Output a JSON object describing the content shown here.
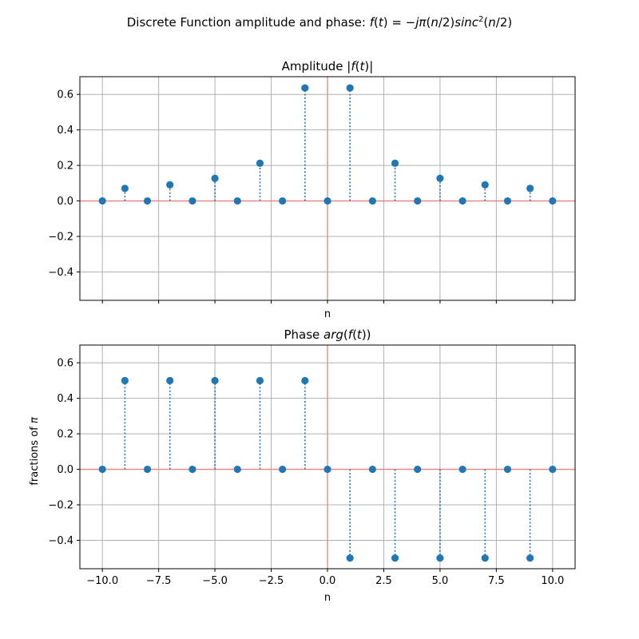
{
  "figure": {
    "suptitle_prefix": "Discrete Function amplitude and phase: ",
    "suptitle_math_a": "f",
    "suptitle_math_b": "(",
    "suptitle_math_c": "t",
    "suptitle_math_d": ") = −",
    "suptitle_math_e": "jπ",
    "suptitle_math_f": "(",
    "suptitle_math_g": "n",
    "suptitle_math_h": "/2)",
    "suptitle_math_i": "sinc",
    "suptitle_math_sup": "2",
    "suptitle_math_j": "(",
    "suptitle_math_k": "n",
    "suptitle_math_l": "/2)"
  },
  "colors": {
    "marker": "#1f77b4",
    "zero_line": "#f08080",
    "grid": "#b0b0b0",
    "axes": "#000000"
  },
  "chart_data": [
    {
      "type": "stem",
      "title_prefix": "Amplitude |",
      "title_math": "f",
      "title_paren": "(",
      "title_math2": "t",
      "title_suffix": ")|",
      "xlabel": "n",
      "ylabel": "",
      "xlim": [
        -11,
        11
      ],
      "ylim": [
        -0.56,
        0.7
      ],
      "xticks": [
        -10,
        -7.5,
        -5,
        -2.5,
        0,
        2.5,
        5,
        7.5,
        10
      ],
      "xtick_labels_shown": false,
      "yticks": [
        -0.4,
        -0.2,
        0.0,
        0.2,
        0.4,
        0.6
      ],
      "ytick_labels": [
        "−0.4",
        "−0.2",
        "0.0",
        "0.2",
        "0.4",
        "0.6"
      ],
      "grid": true,
      "x": [
        -10,
        -9,
        -8,
        -7,
        -6,
        -5,
        -4,
        -3,
        -2,
        -1,
        0,
        1,
        2,
        3,
        4,
        5,
        6,
        7,
        8,
        9,
        10
      ],
      "y": [
        0,
        0.0707,
        0,
        0.0909,
        0,
        0.1273,
        0,
        0.2122,
        0,
        0.6366,
        0,
        0.6366,
        0,
        0.2122,
        0,
        0.1273,
        0,
        0.0909,
        0,
        0.0707,
        0
      ]
    },
    {
      "type": "stem",
      "title_prefix": "Phase ",
      "title_math": "arg",
      "title_paren": "(",
      "title_math2": "f",
      "title_paren2": "(",
      "title_math3": "t",
      "title_suffix": "))",
      "xlabel": "n",
      "ylabel_prefix": "fractions of ",
      "ylabel_math": "π",
      "xlim": [
        -11,
        11
      ],
      "ylim": [
        -0.56,
        0.7
      ],
      "xticks": [
        -10,
        -7.5,
        -5,
        -2.5,
        0,
        2.5,
        5,
        7.5,
        10
      ],
      "xtick_labels": [
        "−10.0",
        "−7.5",
        "−5.0",
        "−2.5",
        "0.0",
        "2.5",
        "5.0",
        "7.5",
        "10.0"
      ],
      "yticks": [
        -0.4,
        -0.2,
        0.0,
        0.2,
        0.4,
        0.6
      ],
      "ytick_labels": [
        "−0.4",
        "−0.2",
        "0.0",
        "0.2",
        "0.4",
        "0.6"
      ],
      "grid": true,
      "x": [
        -10,
        -9,
        -8,
        -7,
        -6,
        -5,
        -4,
        -3,
        -2,
        -1,
        0,
        1,
        2,
        3,
        4,
        5,
        6,
        7,
        8,
        9,
        10
      ],
      "y": [
        0,
        0.5,
        0,
        0.5,
        0,
        0.5,
        0,
        0.5,
        0,
        0.5,
        0,
        -0.5,
        0,
        -0.5,
        0,
        -0.5,
        0,
        -0.5,
        0,
        -0.5,
        0
      ]
    }
  ]
}
